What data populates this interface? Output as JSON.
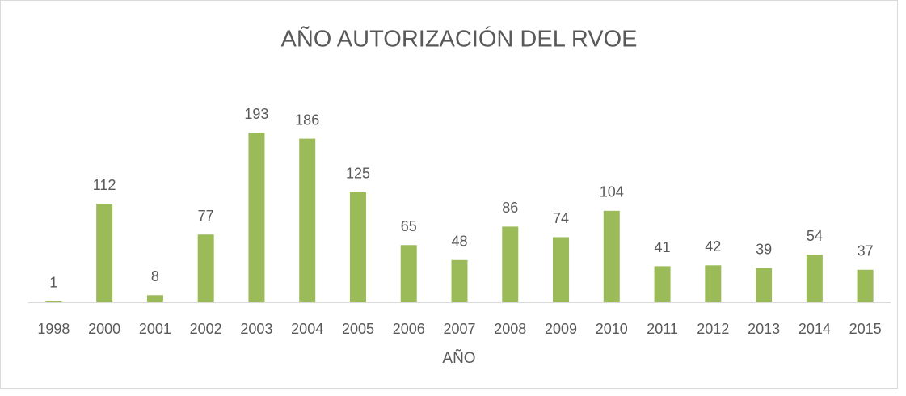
{
  "chart_data": {
    "type": "bar",
    "title": "AÑO AUTORIZACIÓN DEL RVOE",
    "x_label": "AÑO",
    "categories": [
      "1998",
      "2000",
      "2001",
      "2002",
      "2003",
      "2004",
      "2005",
      "2006",
      "2007",
      "2008",
      "2009",
      "2010",
      "2011",
      "2012",
      "2013",
      "2014",
      "2015"
    ],
    "values": [
      1,
      112,
      8,
      77,
      193,
      186,
      125,
      65,
      48,
      86,
      74,
      104,
      41,
      42,
      39,
      54,
      37
    ],
    "color": "#9bbb59"
  }
}
